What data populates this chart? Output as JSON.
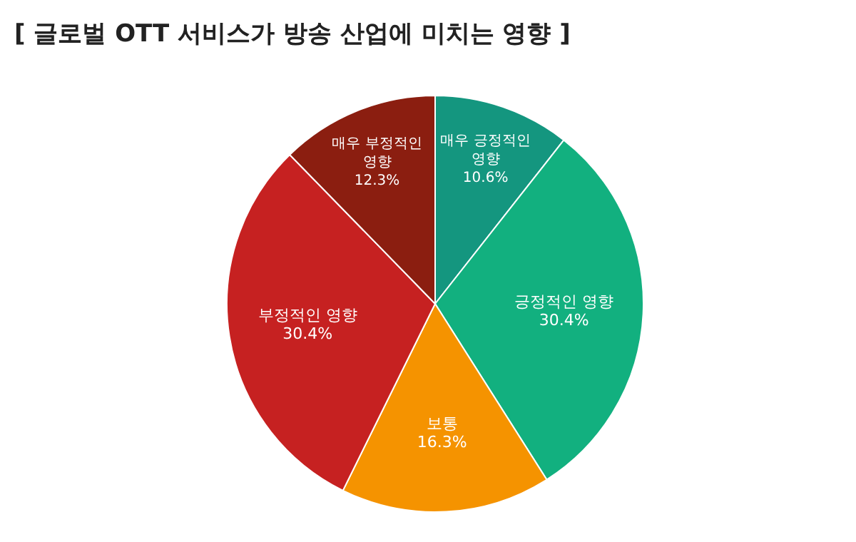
{
  "chart_data": {
    "type": "pie",
    "title": "[ 글로벌 OTT 서비스가 방송 산업에 미치는 영향 ]",
    "categories": [
      "매우 긍정적인 영향",
      "긍정적인 영향",
      "보통",
      "부정적인 영향",
      "매우 부정적인 영향"
    ],
    "values": [
      10.6,
      30.4,
      16.3,
      30.4,
      12.3
    ],
    "colors": [
      "#14967f",
      "#12b07f",
      "#f59300",
      "#c62121",
      "#8b1e10"
    ],
    "value_labels": [
      "10.6%",
      "30.4%",
      "16.3%",
      "30.4%",
      "12.3%"
    ],
    "legend": false
  }
}
